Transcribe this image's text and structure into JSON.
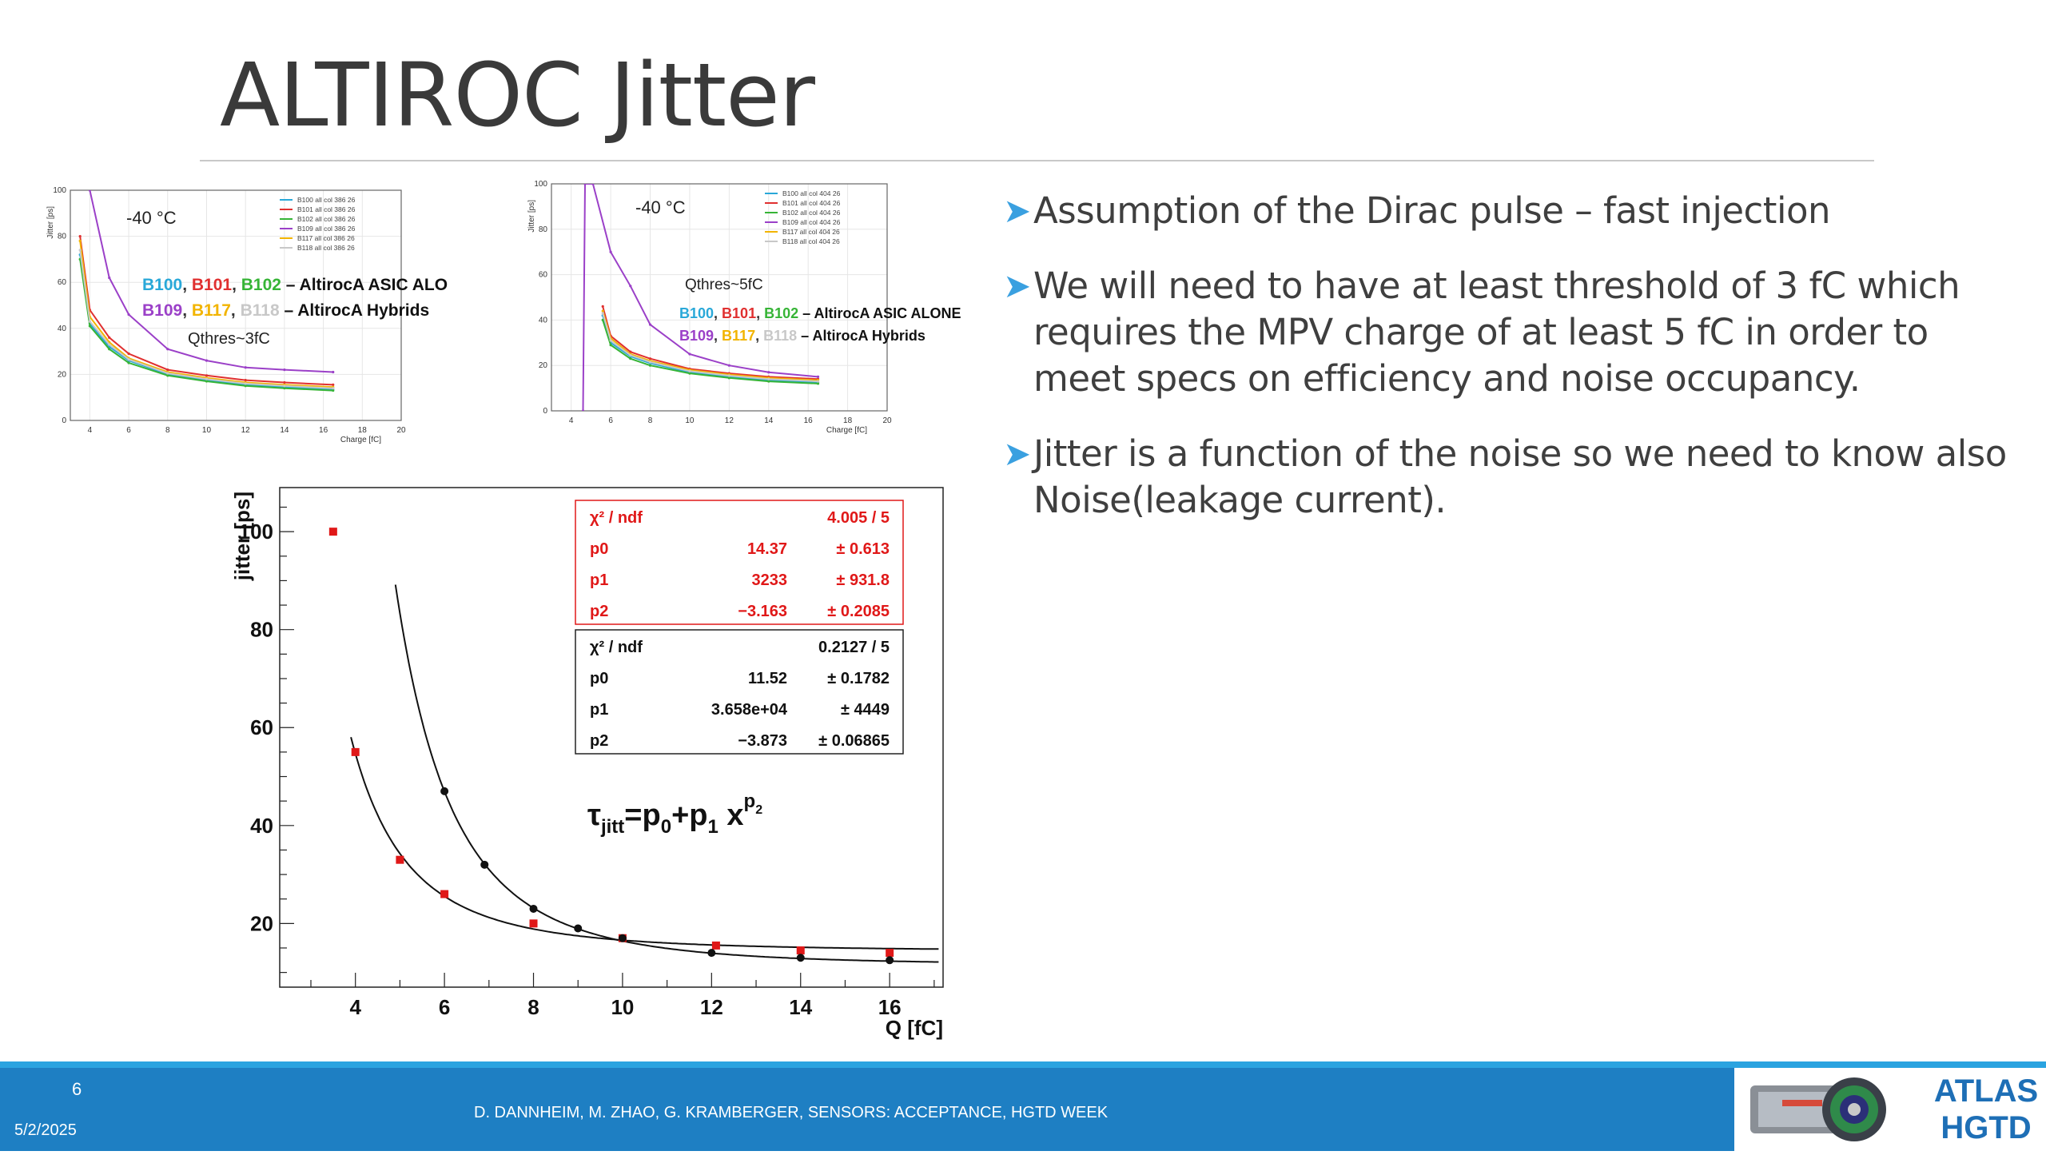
{
  "slide": {
    "title": "ALTIROC Jitter",
    "bullets": [
      "Assumption of the Dirac pulse – fast injection",
      "We will need to have at least threshold of 3 fC which requires the MPV charge of at least 5 fC in order to meet specs on efficiency and noise occupancy.",
      "Jitter is a function of the noise so we need to know also Noise(leakage current)."
    ],
    "bullet_marker": "➤"
  },
  "footer": {
    "page": "6",
    "date": "5/2/2025",
    "authors": "D. DANNHEIM, M. ZHAO, G. KRAMBERGER, SENSORS: ACCEPTANCE, HGTD WEEK",
    "logo_text_1": "ATLAS",
    "logo_text_2": "HGTD"
  },
  "colors": {
    "accent": "#2aa3e0",
    "footer": "#1e7fc3",
    "b100": "#29a8d8",
    "b101": "#e03030",
    "b102": "#36b436",
    "b109": "#9b40c8",
    "b117": "#f2b400",
    "b118": "#c8c8c8"
  },
  "chart_data": [
    {
      "type": "line",
      "temperature_label": "-40 °C",
      "threshold_label": "Qthres~3fC",
      "xlabel": "Charge [fC]",
      "ylabel": "Jitter [ps]",
      "xlim": [
        3,
        20
      ],
      "ylim": [
        0,
        100
      ],
      "xticks": [
        4,
        6,
        8,
        10,
        12,
        14,
        16,
        18,
        20
      ],
      "yticks": [
        0,
        20,
        40,
        60,
        80,
        100
      ],
      "legend_position": "top-right",
      "legend": [
        "B100 all col 386 26",
        "B101 all col 386 26",
        "B102 all col 386 26",
        "B109 all col 386 26",
        "B117 all col 386 26",
        "B118 all col 386 26"
      ],
      "annotation_asic": {
        "parts": [
          "B100",
          ", ",
          "B101",
          ", ",
          "B102",
          " – AltirocA ASIC ALO"
        ]
      },
      "annotation_hybrid": {
        "parts": [
          "B109",
          ", ",
          "B117",
          ", ",
          "B118",
          " – AltirocA Hybrids"
        ]
      },
      "series": [
        {
          "name": "B100 all col 386 26",
          "x": [
            3.5,
            4,
            5,
            6,
            8,
            10,
            12,
            14,
            16.5
          ],
          "y": [
            72,
            42,
            32,
            26,
            20,
            17.5,
            15.5,
            14.5,
            13.5
          ]
        },
        {
          "name": "B101 all col 386 26",
          "x": [
            3.5,
            4,
            5,
            6,
            8,
            10,
            12,
            14,
            16.5
          ],
          "y": [
            80,
            48,
            36,
            29,
            22,
            19.5,
            17.5,
            16.5,
            15.5
          ]
        },
        {
          "name": "B102 all col 386 26",
          "x": [
            3.5,
            4,
            5,
            6,
            8,
            10,
            12,
            14,
            16.5
          ],
          "y": [
            70,
            41,
            31,
            25,
            19.5,
            17,
            15,
            14,
            13
          ]
        },
        {
          "name": "B109 all col 386 26",
          "x": [
            3.5,
            4,
            5,
            6,
            8,
            10,
            12,
            14,
            16.5
          ],
          "y": [
            110,
            100,
            62,
            46,
            31,
            26,
            23,
            22,
            21
          ]
        },
        {
          "name": "B117 all col 386 26",
          "x": [
            3.5,
            4,
            5,
            6,
            8,
            10,
            12,
            14,
            16.5
          ],
          "y": [
            78,
            45,
            34,
            27,
            21,
            18.5,
            16.5,
            15.5,
            14.5
          ]
        },
        {
          "name": "B118 all col 386 26",
          "x": [
            3.5,
            4,
            5,
            6,
            8,
            10,
            12,
            14,
            16.5
          ],
          "y": [
            74,
            43,
            33,
            26.5,
            20.5,
            18,
            16,
            15,
            14
          ]
        }
      ]
    },
    {
      "type": "line",
      "temperature_label": "-40 °C",
      "threshold_label": "Qthres~5fC",
      "xlabel": "Charge [fC]",
      "ylabel": "Jitter [ps]",
      "xlim": [
        3,
        20
      ],
      "ylim": [
        0,
        100
      ],
      "xticks": [
        4,
        6,
        8,
        10,
        12,
        14,
        16,
        18,
        20
      ],
      "yticks": [
        0,
        20,
        40,
        60,
        80,
        100
      ],
      "legend_position": "top-right",
      "legend": [
        "B100 all col 404 26",
        "B101 all col 404 26",
        "B102 all col 404 26",
        "B109 all col 404 26",
        "B117 all col 404 26",
        "B118 all col 404 26"
      ],
      "annotation_asic": {
        "parts": [
          "B100",
          ", ",
          "B101",
          ", ",
          "B102",
          " – AltirocA ASIC ALONE"
        ]
      },
      "annotation_hybrid": {
        "parts": [
          "B109",
          ", ",
          "B117",
          ", ",
          "B118",
          " – AltirocA Hybrids"
        ]
      },
      "series": [
        {
          "name": "B100 all col 404 26",
          "x": [
            5.6,
            6,
            7,
            8,
            10,
            12,
            14,
            16.5
          ],
          "y": [
            42,
            30,
            24,
            21,
            17,
            15,
            13.5,
            12.5
          ]
        },
        {
          "name": "B101 all col 404 26",
          "x": [
            5.6,
            6,
            7,
            8,
            10,
            12,
            14,
            16.5
          ],
          "y": [
            46,
            33,
            26,
            23,
            18.5,
            16.5,
            15,
            14
          ]
        },
        {
          "name": "B102 all col 404 26",
          "x": [
            5.6,
            6,
            7,
            8,
            10,
            12,
            14,
            16.5
          ],
          "y": [
            40,
            29,
            23,
            20,
            16.5,
            14.5,
            13,
            12
          ]
        },
        {
          "name": "B109 all col 404 26",
          "x": [
            4.6,
            4.7,
            5.1,
            6,
            7,
            8,
            10,
            12,
            14,
            16.5
          ],
          "y": [
            0,
            100,
            100,
            70,
            55,
            38,
            25,
            20,
            17,
            15
          ]
        },
        {
          "name": "B117 all col 404 26",
          "x": [
            5.6,
            6,
            7,
            8,
            10,
            12,
            14,
            16.5
          ],
          "y": [
            44,
            32,
            25,
            22,
            18,
            16,
            14.5,
            13.5
          ]
        },
        {
          "name": "B118 all col 404 26",
          "x": [
            5.6,
            6,
            7,
            8,
            10,
            12,
            14,
            16.5
          ],
          "y": [
            43,
            31,
            24.5,
            21.5,
            17.5,
            15.5,
            14,
            13
          ]
        }
      ]
    },
    {
      "type": "scatter",
      "xlabel": "Q [fC]",
      "ylabel": "jitter [ps]",
      "xlim": [
        2.3,
        17.2
      ],
      "ylim": [
        7,
        109
      ],
      "xticks": [
        4,
        6,
        8,
        10,
        12,
        14,
        16
      ],
      "yticks": [
        20,
        40,
        60,
        80,
        100
      ],
      "formula": {
        "tau": "τ",
        "jitt": "jitt",
        "eq": "=p",
        "sub0": "0",
        "plus": "+p",
        "sub1": "1",
        "x": " x",
        "sup": "p",
        "supsub": "2"
      },
      "series": [
        {
          "name": "red",
          "color": "#e01818",
          "x": [
            3.5,
            4,
            5,
            6,
            8,
            10,
            12.1,
            14,
            16
          ],
          "y": [
            100,
            55,
            33,
            26,
            20,
            17,
            15.5,
            14.5,
            14
          ],
          "fit": {
            "p0": 14.37,
            "p1": 3233,
            "p2": -3.163,
            "x_range": [
              3.9,
              17.1
            ]
          },
          "stats": [
            {
              "label": "χ² / ndf",
              "value": "4.005 / 5",
              "err": ""
            },
            {
              "label": "p0",
              "value": "14.37",
              "err": "± 0.613"
            },
            {
              "label": "p1",
              "value": "3233",
              "err": "± 931.8"
            },
            {
              "label": "p2",
              "value": "−3.163",
              "err": "± 0.2085"
            }
          ]
        },
        {
          "name": "black",
          "color": "#111111",
          "x": [
            6,
            6.9,
            8,
            9,
            10,
            12,
            14,
            16
          ],
          "y": [
            47,
            32,
            23,
            19,
            17,
            14,
            13,
            12.5
          ],
          "fit": {
            "p0": 11.52,
            "p1": 36580,
            "p2": -3.873,
            "x_range": [
              4.9,
              17.1
            ]
          },
          "stats": [
            {
              "label": "χ² / ndf",
              "value": "0.2127 / 5",
              "err": ""
            },
            {
              "label": "p0",
              "value": "11.52",
              "err": "± 0.1782"
            },
            {
              "label": "p1",
              "value": "3.658e+04",
              "err": "± 4449"
            },
            {
              "label": "p2",
              "value": "−3.873",
              "err": "± 0.06865"
            }
          ]
        }
      ]
    }
  ]
}
